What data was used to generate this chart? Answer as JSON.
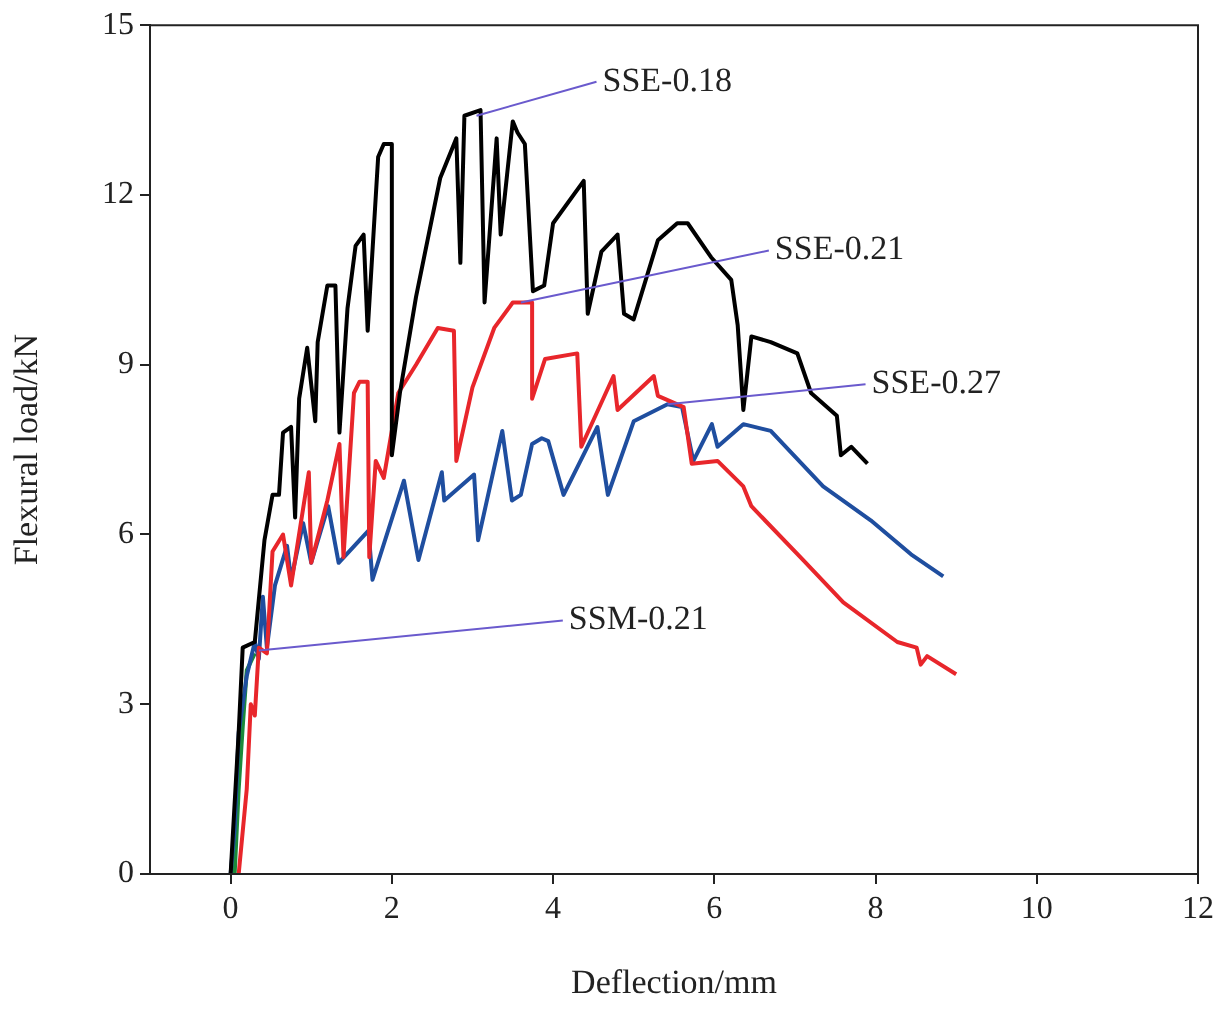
{
  "chart_data": {
    "type": "line",
    "xlabel": "Deflection/mm",
    "ylabel": "Flexural load/kN",
    "xlim": [
      -1,
      12
    ],
    "xticks": [
      0,
      2,
      4,
      6,
      8,
      10,
      12
    ],
    "ylim": [
      0,
      15
    ],
    "yticks": [
      0,
      3,
      6,
      9,
      12,
      15
    ],
    "grid": false,
    "legend": false,
    "marker": "none",
    "line_style": "solid",
    "series": [
      {
        "color": "#000000",
        "x": [
          0,
          0.1,
          0.15,
          0.3,
          0.42,
          0.52,
          0.6,
          0.65,
          0.75,
          0.8,
          0.85,
          0.95,
          1.05,
          1.08,
          1.2,
          1.3,
          1.35,
          1.45,
          1.55,
          1.65,
          1.7,
          1.83,
          1.9,
          2.0,
          2.0,
          2.1,
          2.3,
          2.6,
          2.8,
          2.85,
          2.9,
          3.1,
          3.15,
          3.3,
          3.35,
          3.5,
          3.56,
          3.65,
          3.75,
          3.89,
          4.0,
          4.38,
          4.43,
          4.6,
          4.8,
          4.88,
          5.0,
          5.3,
          5.54,
          5.67,
          5.96,
          6.21,
          6.29,
          6.36,
          6.46,
          6.7,
          7.03,
          7.2,
          7.52,
          7.57,
          7.7,
          7.9
        ],
        "values": [
          0,
          2.5,
          4.0,
          4.1,
          5.9,
          6.7,
          6.7,
          7.8,
          7.9,
          6.3,
          8.4,
          9.3,
          8.0,
          9.4,
          10.4,
          10.4,
          7.8,
          10.0,
          11.1,
          11.3,
          9.6,
          12.67,
          12.9,
          12.9,
          7.4,
          8.5,
          10.2,
          12.3,
          13.0,
          10.8,
          13.4,
          13.5,
          10.1,
          13.0,
          11.3,
          13.3,
          13.1,
          12.9,
          10.3,
          10.4,
          11.5,
          12.25,
          9.9,
          11.0,
          11.3,
          9.9,
          9.8,
          11.2,
          11.5,
          11.5,
          10.9,
          10.5,
          9.7,
          8.2,
          9.5,
          9.4,
          9.2,
          8.5,
          8.1,
          7.4,
          7.55,
          7.25
        ]
      },
      {
        "color": "#e8262b",
        "x": [
          0.1,
          0.2,
          0.25,
          0.3,
          0.35,
          0.45,
          0.52,
          0.65,
          0.75,
          0.97,
          1.0,
          1.2,
          1.35,
          1.4,
          1.53,
          1.6,
          1.7,
          1.72,
          1.8,
          1.9,
          2.08,
          2.3,
          2.57,
          2.77,
          2.8,
          3.0,
          3.27,
          3.5,
          3.74,
          3.74,
          3.9,
          4.3,
          4.35,
          4.75,
          4.8,
          5.25,
          5.3,
          5.62,
          5.72,
          6.04,
          6.36,
          6.46,
          7.1,
          7.6,
          8.27,
          8.51,
          8.56,
          8.64,
          9.0
        ],
        "values": [
          0,
          1.5,
          3.0,
          2.8,
          4.0,
          3.9,
          5.7,
          6.0,
          5.1,
          7.1,
          5.5,
          6.6,
          7.6,
          5.6,
          8.5,
          8.7,
          8.7,
          5.6,
          7.3,
          7.0,
          8.5,
          9.0,
          9.65,
          9.6,
          7.3,
          8.6,
          9.65,
          10.1,
          10.1,
          8.4,
          9.1,
          9.2,
          7.55,
          8.8,
          8.2,
          8.8,
          8.45,
          8.25,
          7.25,
          7.3,
          6.85,
          6.5,
          5.55,
          4.8,
          4.1,
          4.0,
          3.7,
          3.85,
          3.53
        ]
      },
      {
        "color": "#1f4e9f",
        "x": [
          0,
          0.05,
          0.1,
          0.2,
          0.3,
          0.35,
          0.4,
          0.45,
          0.55,
          0.7,
          0.75,
          0.9,
          1.0,
          1.21,
          1.34,
          1.71,
          1.76,
          2.15,
          2.33,
          2.62,
          2.65,
          3.02,
          3.07,
          3.37,
          3.49,
          3.6,
          3.74,
          3.86,
          3.94,
          4.13,
          4.55,
          4.68,
          5.0,
          5.42,
          5.6,
          5.74,
          5.97,
          6.04,
          6.36,
          6.7,
          7.35,
          7.94,
          8.44,
          8.84
        ],
        "values": [
          0,
          0.8,
          2.5,
          3.5,
          4.1,
          3.8,
          4.9,
          4.0,
          5.1,
          5.8,
          5.2,
          6.2,
          5.5,
          6.5,
          5.5,
          6.07,
          5.2,
          6.95,
          5.55,
          7.1,
          6.6,
          7.06,
          5.9,
          7.83,
          6.6,
          6.7,
          7.6,
          7.7,
          7.65,
          6.7,
          7.9,
          6.7,
          8.0,
          8.3,
          8.25,
          7.3,
          7.95,
          7.55,
          7.95,
          7.83,
          6.85,
          6.25,
          5.65,
          5.26
        ]
      },
      {
        "color": "#1a8a3a",
        "x": [
          0.05,
          0.1,
          0.15,
          0.2,
          0.3
        ],
        "values": [
          0,
          1.5,
          2.6,
          3.6,
          3.9
        ]
      }
    ],
    "annotations": [
      {
        "text": "SSE-0.18",
        "x": 3.05,
        "y": 13.4
      },
      {
        "text": "SSE-0.21",
        "x": 3.6,
        "y": 10.1
      },
      {
        "text": "SSE-0.27",
        "x": 5.42,
        "y": 8.3
      },
      {
        "text": "SSM-0.21",
        "x": 0.35,
        "y": 3.95
      }
    ]
  }
}
